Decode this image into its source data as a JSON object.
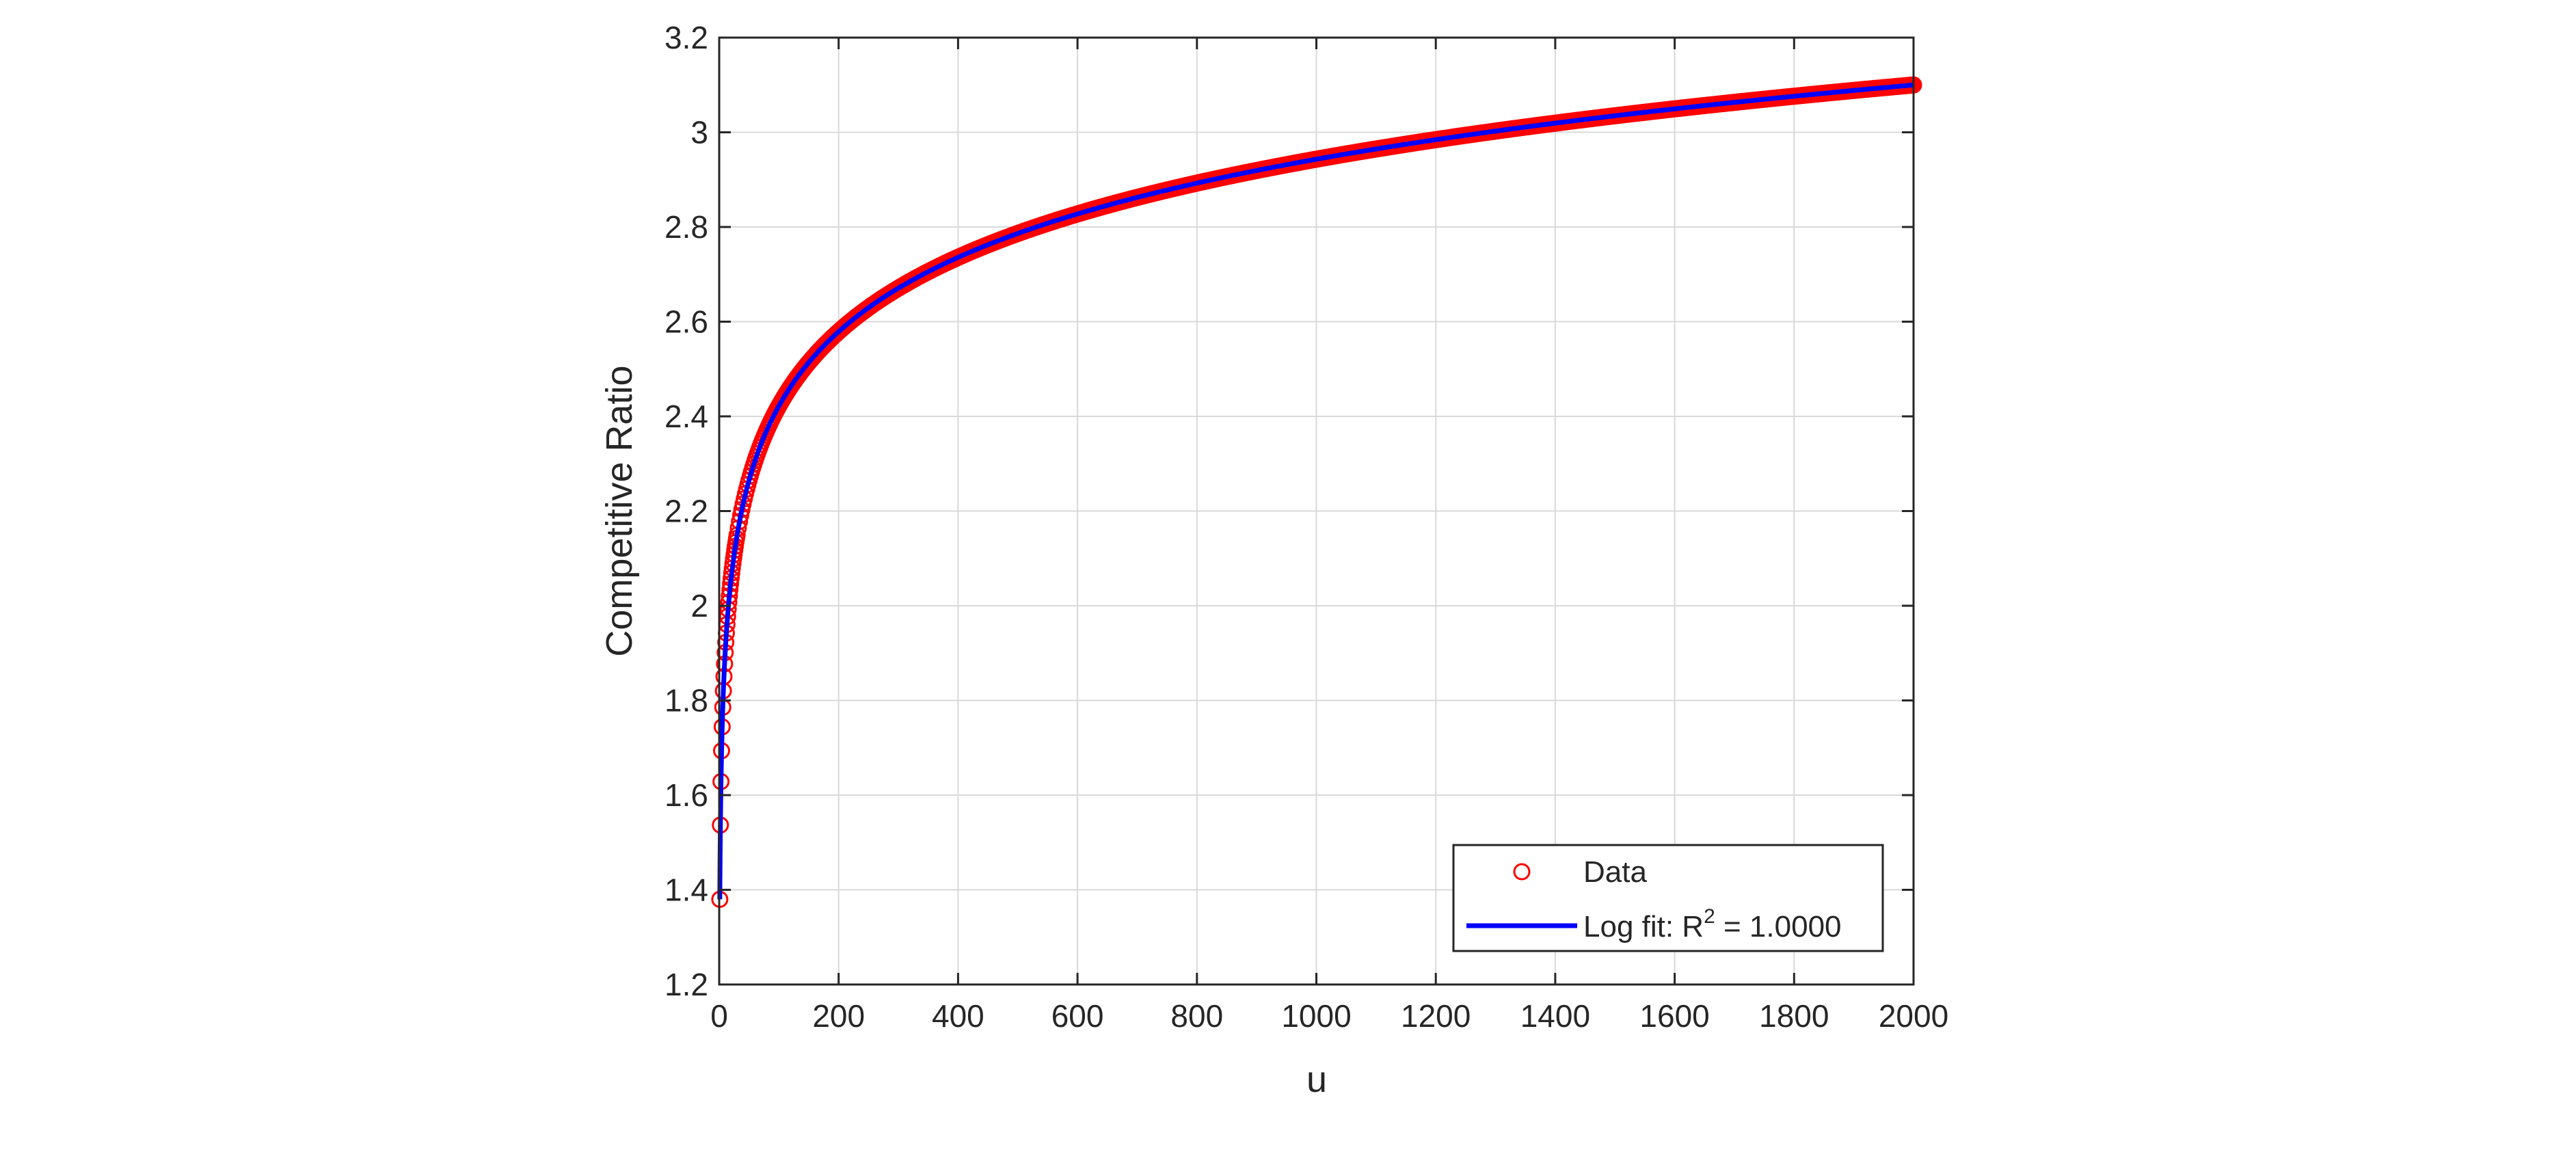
{
  "chart_data": {
    "type": "scatter",
    "title": "",
    "xlabel": "u",
    "ylabel": "Competitive Ratio",
    "xlim": [
      0,
      2000
    ],
    "ylim": [
      1.2,
      3.2
    ],
    "xticks": [
      0,
      200,
      400,
      600,
      800,
      1000,
      1200,
      1400,
      1600,
      1800,
      2000
    ],
    "xtick_labels": [
      "0",
      "200",
      "400",
      "600",
      "800",
      "1000",
      "1200",
      "1400",
      "1600",
      "1800",
      "2000"
    ],
    "yticks": [
      1.2,
      1.4,
      1.6,
      1.8,
      2.0,
      2.2,
      2.4,
      2.6,
      2.8,
      3.0,
      3.2
    ],
    "ytick_labels": [
      "1.2",
      "1.4",
      "1.6",
      "1.8",
      "2",
      "2.2",
      "2.4",
      "2.6",
      "2.8",
      "3",
      "3.2"
    ],
    "grid": true,
    "legend_position": "bottom-right",
    "colors": {
      "data": "#ff0000",
      "fit": "#0000ff",
      "grid": "#d9d9d9",
      "axes": "#262626"
    },
    "series": [
      {
        "name": "Data",
        "kind": "markers",
        "marker": "circle",
        "note_sampling": "markers at every integer u from 1 to 2000",
        "x": [
          1,
          2,
          3,
          4,
          5,
          10,
          25,
          50,
          100,
          200,
          400,
          600,
          800,
          1000,
          1200,
          1400,
          1600,
          1800,
          2000
        ],
        "y": [
          1.38,
          1.465,
          1.53,
          1.585,
          1.63,
          1.77,
          1.99,
          2.16,
          2.33,
          2.5,
          2.68,
          2.785,
          2.86,
          2.915,
          2.965,
          3.005,
          3.04,
          3.07,
          3.1
        ]
      },
      {
        "name": "Log fit: R",
        "name_superscript": "2",
        "name_suffix": " = 1.0000",
        "kind": "line",
        "x": [
          1,
          2,
          3,
          4,
          5,
          10,
          25,
          50,
          100,
          200,
          400,
          600,
          800,
          1000,
          1200,
          1400,
          1600,
          1800,
          2000
        ],
        "y": [
          1.38,
          1.465,
          1.53,
          1.585,
          1.63,
          1.77,
          1.99,
          2.16,
          2.33,
          2.5,
          2.68,
          2.785,
          2.86,
          2.915,
          2.965,
          3.005,
          3.04,
          3.07,
          3.1
        ]
      }
    ]
  }
}
